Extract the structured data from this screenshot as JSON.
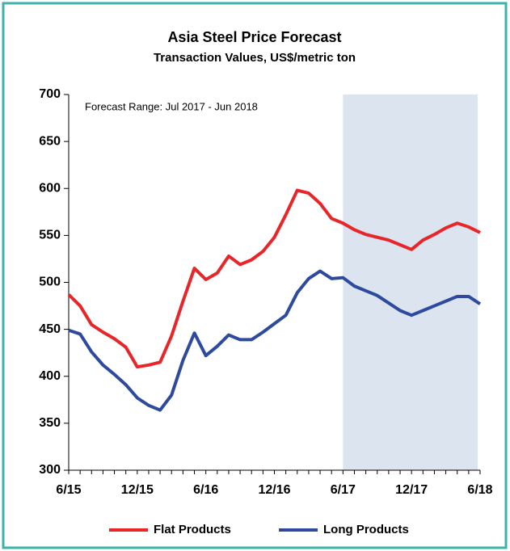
{
  "chart_data": {
    "type": "line",
    "title": "Asia Steel Price Forecast",
    "subtitle": "Transaction Values, US$/metric ton",
    "annotation": "Forecast Range: Jul 2017 - Jun 2018",
    "categories": [
      "6/15",
      null,
      null,
      null,
      null,
      null,
      "12/15",
      null,
      null,
      null,
      null,
      null,
      "6/16",
      null,
      null,
      null,
      null,
      null,
      "12/16",
      null,
      null,
      null,
      null,
      null,
      "6/17",
      null,
      null,
      null,
      null,
      null,
      "12/17",
      null,
      null,
      null,
      null,
      null,
      "6/18"
    ],
    "series": [
      {
        "name": "Flat Products",
        "color": "#e8262a",
        "values": [
          487,
          475,
          455,
          447,
          440,
          431,
          410,
          412,
          415,
          443,
          480,
          515,
          503,
          510,
          528,
          519,
          524,
          533,
          548,
          572,
          598,
          595,
          584,
          568,
          563,
          556,
          551,
          548,
          545,
          540,
          535,
          545,
          551,
          558,
          563,
          559,
          553
        ]
      },
      {
        "name": "Long Products",
        "color": "#2e4a9e",
        "values": [
          449,
          445,
          426,
          412,
          402,
          391,
          377,
          369,
          364,
          380,
          417,
          446,
          422,
          432,
          444,
          439,
          439,
          447,
          456,
          465,
          489,
          504,
          512,
          504,
          505,
          496,
          491,
          486,
          478,
          470,
          465,
          470,
          475,
          480,
          485,
          485,
          477
        ]
      }
    ],
    "shaded_range": [
      "6/17",
      "6/18"
    ],
    "shade_color": "#dce4f0",
    "ylim": [
      300,
      700
    ],
    "yticks": [
      300,
      350,
      400,
      450,
      500,
      550,
      600,
      650,
      700
    ],
    "grid": false,
    "legend": "bottom"
  }
}
